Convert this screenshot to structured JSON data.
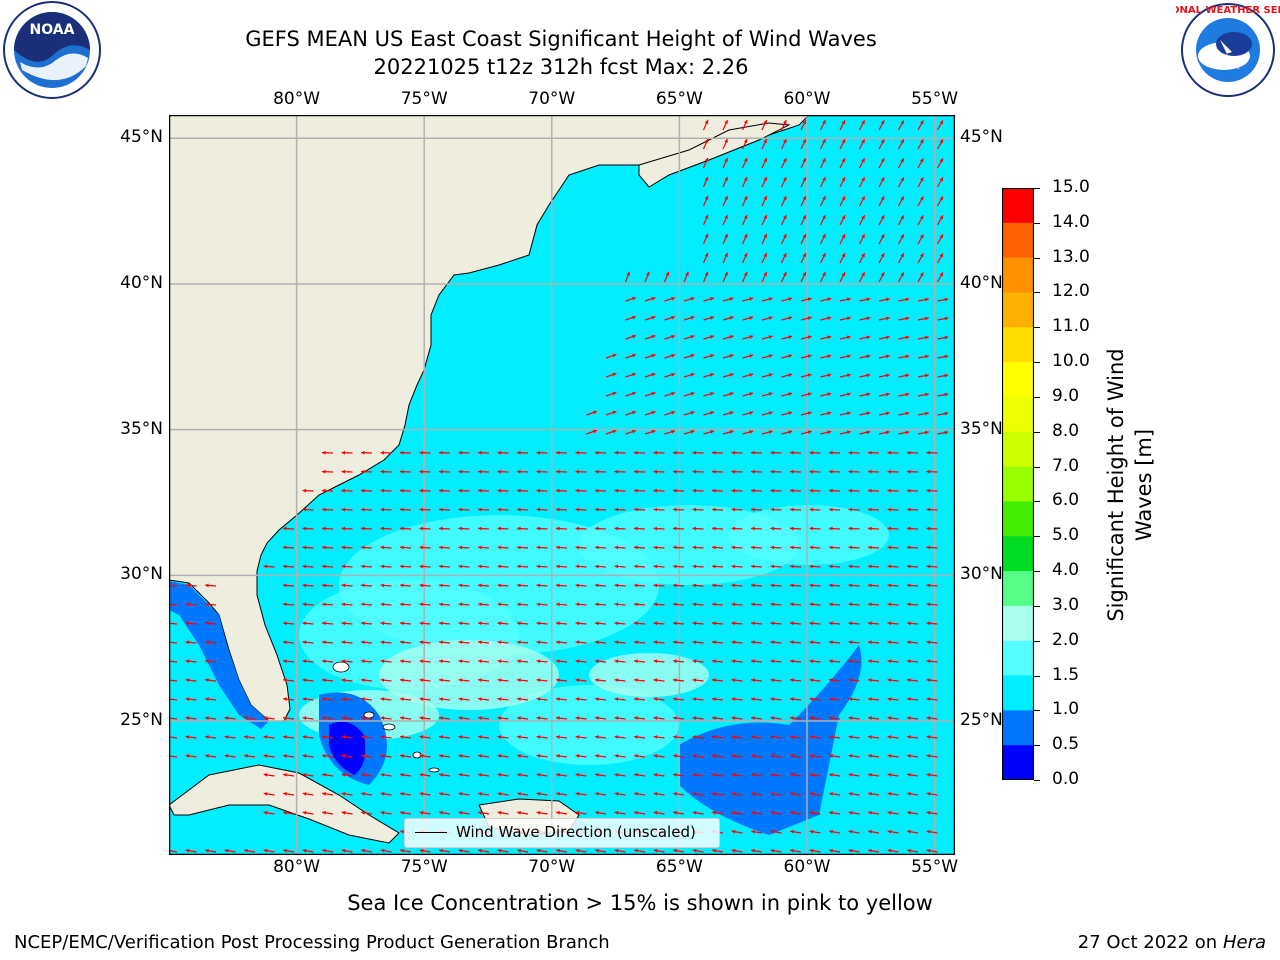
{
  "title": {
    "line1": "GEFS MEAN US East Coast Significant Height of Wind Waves",
    "line2": "20221025 t12z 312h fcst   Max: 2.26"
  },
  "logos": {
    "left_text": "NOAA",
    "right_text": "NATIONAL WEATHER SERVICE",
    "left_ring": "NATIONAL OCEANIC AND ATMOSPHERIC ADMINISTRATION · U.S. DEPARTMENT OF COMMERCE"
  },
  "map": {
    "lon_labels": [
      "80°W",
      "75°W",
      "70°W",
      "65°W",
      "60°W",
      "55°W"
    ],
    "lat_labels": [
      "45°N",
      "40°N",
      "35°N",
      "30°N",
      "25°N"
    ],
    "lon_values": [
      -80,
      -75,
      -70,
      -65,
      -60,
      -55
    ],
    "lat_values": [
      45,
      40,
      35,
      30,
      25
    ],
    "extent": {
      "lon_min": -85,
      "lon_max": -54.2,
      "lat_min": 20.4,
      "lat_max": 45.8
    },
    "land_color": "#efedde",
    "arrow_color": "#ff0000",
    "legend_label": "Wind Wave Direction (unscaled)"
  },
  "colorbar": {
    "label": "Significant Height of Wind Waves [m]",
    "ticks": [
      "15.0",
      "14.0",
      "13.0",
      "12.0",
      "11.0",
      "10.0",
      "9.0",
      "8.0",
      "7.0",
      "6.0",
      "5.0",
      "4.0",
      "3.0",
      "2.0",
      "1.5",
      "1.0",
      "0.5",
      "0.0"
    ],
    "colors": [
      "#ff0000",
      "#ff3000",
      "#ff6000",
      "#ff9000",
      "#ffb000",
      "#ffdd00",
      "#ffff00",
      "#eeff00",
      "#ccff00",
      "#99ff00",
      "#44ee00",
      "#00dd22",
      "#55ff88",
      "#aaffee",
      "#55ffff",
      "#00eeff",
      "#0077ff",
      "#0000ff"
    ]
  },
  "footer": {
    "sea_ice": "Sea Ice Concentration > 15% is shown in pink to yellow",
    "branch": "NCEP/EMC/Verification Post Processing Product Generation Branch",
    "date": "27 Oct 2022 on",
    "host": "Hera"
  }
}
